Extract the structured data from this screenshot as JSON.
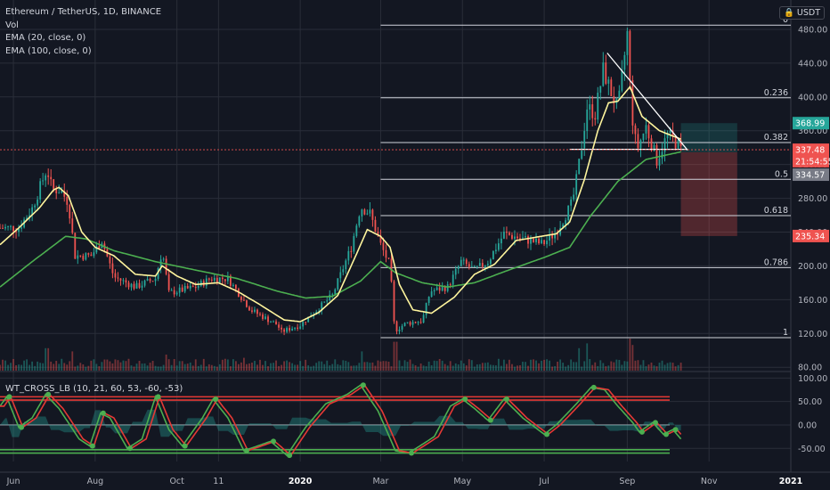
{
  "header": {
    "symbol_line": "Ethereum / TetherUS, 1D, BINANCE",
    "indicators": [
      "Vol",
      "EMA (20, close, 0)",
      "EMA (100, close, 0)"
    ],
    "oscillator_label": "WT_CROSS_LB (10, 21, 60, 53, -60, -53)",
    "unit_button": "USDT",
    "unit_icon": "lock-icon"
  },
  "colors": {
    "background": "#131722",
    "grid": "#2a2e39",
    "up": "#26a69a",
    "down": "#ef5350",
    "ema20": "#fff59d",
    "ema100": "#4caf50",
    "fib_line": "#d1d4dc",
    "wt1": "#4caf50",
    "wt2": "#e53935",
    "osc_area": "#26a69a",
    "osc_zero": "#b2b5be",
    "level_red": "#e53935",
    "level_green": "#4caf50",
    "target_zone": "#26a69a",
    "stop_zone": "#ef5350"
  },
  "chart_data": [
    {
      "type": "candlestick",
      "title": "Ethereum / TetherUS, 1D, BINANCE",
      "y_unit": "USDT",
      "x_tick_labels": [
        "Jun",
        "Aug",
        "Oct",
        "11",
        "2020",
        "Mar",
        "May",
        "Jul",
        "Sep",
        "Nov",
        "2021"
      ],
      "x_tick_dates": [
        "2019-06-01",
        "2019-08-01",
        "2019-10-01",
        "2019-11-01",
        "2020-01-01",
        "2020-03-01",
        "2020-05-01",
        "2020-07-01",
        "2020-09-01",
        "2020-11-01",
        "2021-01-01"
      ],
      "x_range": [
        "2019-05-22",
        "2021-01-01"
      ],
      "y_tick_labels": [
        "80.00",
        "120.00",
        "160.00",
        "200.00",
        "240.00",
        "280.00",
        "320.00",
        "360.00",
        "400.00",
        "440.00",
        "480.00"
      ],
      "y_ticks": [
        80,
        120,
        160,
        200,
        240,
        280,
        320,
        360,
        400,
        440,
        480
      ],
      "ylim": [
        76,
        500
      ],
      "price_anchors": [
        {
          "date": "2019-05-22",
          "close": 245
        },
        {
          "date": "2019-06-05",
          "close": 245
        },
        {
          "date": "2019-06-15",
          "close": 268
        },
        {
          "date": "2019-06-26",
          "close": 315
        },
        {
          "date": "2019-06-30",
          "close": 290
        },
        {
          "date": "2019-07-06",
          "close": 290
        },
        {
          "date": "2019-07-12",
          "close": 275
        },
        {
          "date": "2019-07-17",
          "close": 212
        },
        {
          "date": "2019-07-29",
          "close": 212
        },
        {
          "date": "2019-08-06",
          "close": 230
        },
        {
          "date": "2019-08-15",
          "close": 187
        },
        {
          "date": "2019-08-31",
          "close": 175
        },
        {
          "date": "2019-09-15",
          "close": 185
        },
        {
          "date": "2019-09-20",
          "close": 218
        },
        {
          "date": "2019-09-25",
          "close": 168
        },
        {
          "date": "2019-10-15",
          "close": 175
        },
        {
          "date": "2019-10-26",
          "close": 185
        },
        {
          "date": "2019-11-08",
          "close": 185
        },
        {
          "date": "2019-11-25",
          "close": 148
        },
        {
          "date": "2019-12-15",
          "close": 130
        },
        {
          "date": "2019-12-18",
          "close": 122
        },
        {
          "date": "2020-01-01",
          "close": 130
        },
        {
          "date": "2020-01-10",
          "close": 143
        },
        {
          "date": "2020-01-25",
          "close": 165
        },
        {
          "date": "2020-02-08",
          "close": 222
        },
        {
          "date": "2020-02-15",
          "close": 270
        },
        {
          "date": "2020-02-22",
          "close": 262
        },
        {
          "date": "2020-03-01",
          "close": 225
        },
        {
          "date": "2020-03-08",
          "close": 200
        },
        {
          "date": "2020-03-12",
          "close": 110
        },
        {
          "date": "2020-03-13",
          "close": 125
        },
        {
          "date": "2020-03-20",
          "close": 132
        },
        {
          "date": "2020-04-01",
          "close": 135
        },
        {
          "date": "2020-04-07",
          "close": 170
        },
        {
          "date": "2020-04-20",
          "close": 175
        },
        {
          "date": "2020-04-30",
          "close": 205
        },
        {
          "date": "2020-05-10",
          "close": 195
        },
        {
          "date": "2020-05-20",
          "close": 205
        },
        {
          "date": "2020-06-01",
          "close": 238
        },
        {
          "date": "2020-06-15",
          "close": 232
        },
        {
          "date": "2020-06-30",
          "close": 226
        },
        {
          "date": "2020-07-10",
          "close": 240
        },
        {
          "date": "2020-07-22",
          "close": 275
        },
        {
          "date": "2020-07-26",
          "close": 310
        },
        {
          "date": "2020-08-02",
          "close": 388
        },
        {
          "date": "2020-08-08",
          "close": 380
        },
        {
          "date": "2020-08-14",
          "close": 432
        },
        {
          "date": "2020-08-20",
          "close": 405
        },
        {
          "date": "2020-08-25",
          "close": 385
        },
        {
          "date": "2020-09-01",
          "close": 475
        },
        {
          "date": "2020-09-04",
          "close": 385
        },
        {
          "date": "2020-09-08",
          "close": 337
        },
        {
          "date": "2020-09-15",
          "close": 365
        },
        {
          "date": "2020-09-23",
          "close": 325
        },
        {
          "date": "2020-10-01",
          "close": 355
        },
        {
          "date": "2020-10-08",
          "close": 345
        },
        {
          "date": "2020-10-11",
          "close": 337.48
        }
      ],
      "ema20_anchors": [
        {
          "date": "2019-05-22",
          "value": 225
        },
        {
          "date": "2019-06-05",
          "value": 245
        },
        {
          "date": "2019-06-20",
          "value": 268
        },
        {
          "date": "2019-07-01",
          "value": 290
        },
        {
          "date": "2019-07-05",
          "value": 293
        },
        {
          "date": "2019-07-12",
          "value": 283
        },
        {
          "date": "2019-07-22",
          "value": 240
        },
        {
          "date": "2019-08-01",
          "value": 222
        },
        {
          "date": "2019-08-15",
          "value": 212
        },
        {
          "date": "2019-08-31",
          "value": 190
        },
        {
          "date": "2019-09-15",
          "value": 188
        },
        {
          "date": "2019-09-20",
          "value": 200
        },
        {
          "date": "2019-10-01",
          "value": 188
        },
        {
          "date": "2019-10-15",
          "value": 178
        },
        {
          "date": "2019-11-01",
          "value": 180
        },
        {
          "date": "2019-11-15",
          "value": 170
        },
        {
          "date": "2019-12-01",
          "value": 155
        },
        {
          "date": "2019-12-20",
          "value": 136
        },
        {
          "date": "2020-01-01",
          "value": 134
        },
        {
          "date": "2020-01-15",
          "value": 145
        },
        {
          "date": "2020-01-29",
          "value": 165
        },
        {
          "date": "2020-02-10",
          "value": 207
        },
        {
          "date": "2020-02-20",
          "value": 243
        },
        {
          "date": "2020-03-01",
          "value": 235
        },
        {
          "date": "2020-03-08",
          "value": 222
        },
        {
          "date": "2020-03-15",
          "value": 178
        },
        {
          "date": "2020-03-25",
          "value": 148
        },
        {
          "date": "2020-04-08",
          "value": 144
        },
        {
          "date": "2020-04-25",
          "value": 163
        },
        {
          "date": "2020-05-10",
          "value": 190
        },
        {
          "date": "2020-05-25",
          "value": 202
        },
        {
          "date": "2020-06-10",
          "value": 230
        },
        {
          "date": "2020-06-25",
          "value": 234
        },
        {
          "date": "2020-07-10",
          "value": 238
        },
        {
          "date": "2020-07-20",
          "value": 252
        },
        {
          "date": "2020-07-31",
          "value": 302
        },
        {
          "date": "2020-08-10",
          "value": 360
        },
        {
          "date": "2020-08-18",
          "value": 393
        },
        {
          "date": "2020-08-25",
          "value": 395
        },
        {
          "date": "2020-09-03",
          "value": 412
        },
        {
          "date": "2020-09-12",
          "value": 377
        },
        {
          "date": "2020-09-25",
          "value": 360
        },
        {
          "date": "2020-10-11",
          "value": 350
        }
      ],
      "ema100_anchors": [
        {
          "date": "2019-05-22",
          "value": 175
        },
        {
          "date": "2019-06-15",
          "value": 205
        },
        {
          "date": "2019-07-10",
          "value": 235
        },
        {
          "date": "2019-07-25",
          "value": 232
        },
        {
          "date": "2019-08-15",
          "value": 218
        },
        {
          "date": "2019-09-15",
          "value": 205
        },
        {
          "date": "2019-10-15",
          "value": 195
        },
        {
          "date": "2019-11-15",
          "value": 185
        },
        {
          "date": "2019-12-15",
          "value": 170
        },
        {
          "date": "2020-01-05",
          "value": 162
        },
        {
          "date": "2020-01-25",
          "value": 164
        },
        {
          "date": "2020-02-15",
          "value": 182
        },
        {
          "date": "2020-03-01",
          "value": 205
        },
        {
          "date": "2020-03-12",
          "value": 192
        },
        {
          "date": "2020-04-01",
          "value": 180
        },
        {
          "date": "2020-04-20",
          "value": 175
        },
        {
          "date": "2020-05-10",
          "value": 180
        },
        {
          "date": "2020-06-01",
          "value": 193
        },
        {
          "date": "2020-07-01",
          "value": 210
        },
        {
          "date": "2020-07-20",
          "value": 222
        },
        {
          "date": "2020-08-05",
          "value": 260
        },
        {
          "date": "2020-08-25",
          "value": 300
        },
        {
          "date": "2020-09-15",
          "value": 326
        },
        {
          "date": "2020-10-11",
          "value": 335
        }
      ],
      "fibonacci": [
        {
          "label": "0",
          "price": 485.0
        },
        {
          "label": "0.236",
          "price": 399.0
        },
        {
          "label": "0.382",
          "price": 346.0
        },
        {
          "label": "0.5",
          "price": 302.5
        },
        {
          "label": "0.618",
          "price": 259.5
        },
        {
          "label": "0.786",
          "price": 198.0
        },
        {
          "label": "1",
          "price": 115.0
        }
      ],
      "fib_start_date": "2020-03-01",
      "fib_end_date": "2021-01-01",
      "trendline": {
        "from": {
          "date": "2020-08-17",
          "price": 452
        },
        "to": {
          "date": "2020-10-16",
          "price": 337
        }
      },
      "horizontal_line": {
        "from_date": "2020-07-20",
        "to_date": "2020-10-16",
        "price": 338
      },
      "price_level_line": 337.48,
      "position": {
        "start_date": "2020-10-11",
        "end_date": "2020-11-22",
        "entry": 334.57,
        "target": 368.99,
        "stop": 235.34
      },
      "axis_labels": [
        {
          "text": "368.99",
          "price": 368.99,
          "color": "#26a69a"
        },
        {
          "text": "337.48",
          "price": 337.48,
          "color": "#ef5350"
        },
        {
          "text": "21:54:55",
          "price": 324.0,
          "color": "#ef5350"
        },
        {
          "text": "334.57",
          "price": 308.0,
          "color": "#787b86"
        },
        {
          "text": "235.34",
          "price": 235.34,
          "color": "#ef5350"
        }
      ],
      "volume_spikes": [
        {
          "date": "2019-06-26",
          "level": 0.7
        },
        {
          "date": "2019-07-15",
          "level": 0.6
        },
        {
          "date": "2019-09-23",
          "level": 0.5
        },
        {
          "date": "2019-11-20",
          "level": 0.4
        },
        {
          "date": "2020-02-16",
          "level": 0.6
        },
        {
          "date": "2020-03-12",
          "level": 0.9
        },
        {
          "date": "2020-07-27",
          "level": 0.7
        },
        {
          "date": "2020-08-02",
          "level": 0.85
        },
        {
          "date": "2020-09-03",
          "level": 1.0
        },
        {
          "date": "2020-09-05",
          "level": 0.8
        }
      ]
    },
    {
      "type": "line",
      "title": "WT_CROSS_LB (10, 21, 60, 53, -60, -53)",
      "y_tick_labels": [
        "100.00",
        "50.00",
        "0.00",
        "-50.00"
      ],
      "y_ticks": [
        100,
        50,
        0,
        -50
      ],
      "ylim": [
        -78,
        112
      ],
      "overbought_levels": [
        60,
        53
      ],
      "oversold_levels": [
        -60,
        -53
      ],
      "wt_anchors": [
        {
          "date": "2019-05-22",
          "value": 40
        },
        {
          "date": "2019-05-27",
          "value": 60
        },
        {
          "date": "2019-06-05",
          "value": -5
        },
        {
          "date": "2019-06-15",
          "value": 15
        },
        {
          "date": "2019-06-25",
          "value": 65
        },
        {
          "date": "2019-07-05",
          "value": 35
        },
        {
          "date": "2019-07-20",
          "value": -30
        },
        {
          "date": "2019-07-28",
          "value": -45
        },
        {
          "date": "2019-08-05",
          "value": 25
        },
        {
          "date": "2019-08-12",
          "value": 15
        },
        {
          "date": "2019-08-25",
          "value": -50
        },
        {
          "date": "2019-09-05",
          "value": -30
        },
        {
          "date": "2019-09-15",
          "value": 60
        },
        {
          "date": "2019-09-25",
          "value": -10
        },
        {
          "date": "2019-10-05",
          "value": -45
        },
        {
          "date": "2019-10-20",
          "value": 15
        },
        {
          "date": "2019-10-28",
          "value": 55
        },
        {
          "date": "2019-11-08",
          "value": 15
        },
        {
          "date": "2019-11-20",
          "value": -55
        },
        {
          "date": "2019-12-10",
          "value": -35
        },
        {
          "date": "2019-12-22",
          "value": -65
        },
        {
          "date": "2020-01-05",
          "value": -5
        },
        {
          "date": "2020-01-20",
          "value": 45
        },
        {
          "date": "2020-02-05",
          "value": 65
        },
        {
          "date": "2020-02-15",
          "value": 85
        },
        {
          "date": "2020-02-28",
          "value": 30
        },
        {
          "date": "2020-03-12",
          "value": -55
        },
        {
          "date": "2020-03-22",
          "value": -60
        },
        {
          "date": "2020-04-10",
          "value": -25
        },
        {
          "date": "2020-04-22",
          "value": 40
        },
        {
          "date": "2020-05-01",
          "value": 55
        },
        {
          "date": "2020-05-10",
          "value": 35
        },
        {
          "date": "2020-05-20",
          "value": 10
        },
        {
          "date": "2020-06-01",
          "value": 55
        },
        {
          "date": "2020-06-15",
          "value": 15
        },
        {
          "date": "2020-07-01",
          "value": -20
        },
        {
          "date": "2020-07-10",
          "value": 0
        },
        {
          "date": "2020-07-25",
          "value": 45
        },
        {
          "date": "2020-08-05",
          "value": 80
        },
        {
          "date": "2020-08-15",
          "value": 75
        },
        {
          "date": "2020-08-25",
          "value": 40
        },
        {
          "date": "2020-09-05",
          "value": 5
        },
        {
          "date": "2020-09-10",
          "value": -15
        },
        {
          "date": "2020-09-20",
          "value": 5
        },
        {
          "date": "2020-09-28",
          "value": -20
        },
        {
          "date": "2020-10-05",
          "value": -10
        },
        {
          "date": "2020-10-11",
          "value": -30
        }
      ]
    }
  ]
}
